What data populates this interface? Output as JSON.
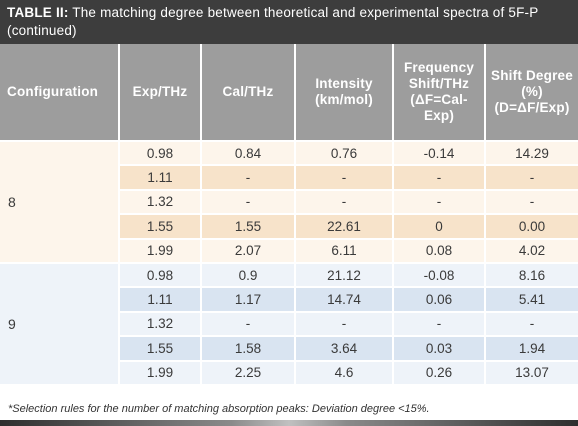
{
  "caption": {
    "label": "TABLE II:",
    "text": " The matching degree between theoretical and experimental spectra of 5F-P (continued)"
  },
  "columns": [
    "Configuration",
    "Exp/THz",
    "Cal/THz",
    "Intensity (km/mol)",
    "Frequency Shift/THz (ΔF=Cal-Exp)",
    "Shift Degree (%) (D=ΔF/Exp)"
  ],
  "groups": [
    {
      "configuration": "8",
      "rows": [
        [
          "0.98",
          "0.84",
          "0.76",
          "-0.14",
          "14.29"
        ],
        [
          "1.11",
          "-",
          "-",
          "-",
          "-"
        ],
        [
          "1.32",
          "-",
          "-",
          "-",
          "-"
        ],
        [
          "1.55",
          "1.55",
          "22.61",
          "0",
          "0.00"
        ],
        [
          "1.99",
          "2.07",
          "6.11",
          "0.08",
          "4.02"
        ]
      ]
    },
    {
      "configuration": "9",
      "rows": [
        [
          "0.98",
          "0.9",
          "21.12",
          "-0.08",
          "8.16"
        ],
        [
          "1.11",
          "1.17",
          "14.74",
          "0.06",
          "5.41"
        ],
        [
          "1.32",
          "-",
          "-",
          "-",
          "-"
        ],
        [
          "1.55",
          "1.58",
          "3.64",
          "0.03",
          "1.94"
        ],
        [
          "1.99",
          "2.25",
          "4.6",
          "0.26",
          "13.07"
        ]
      ]
    }
  ],
  "footnote": "*Selection rules for the number of matching absorption peaks: Deviation degree <15%."
}
